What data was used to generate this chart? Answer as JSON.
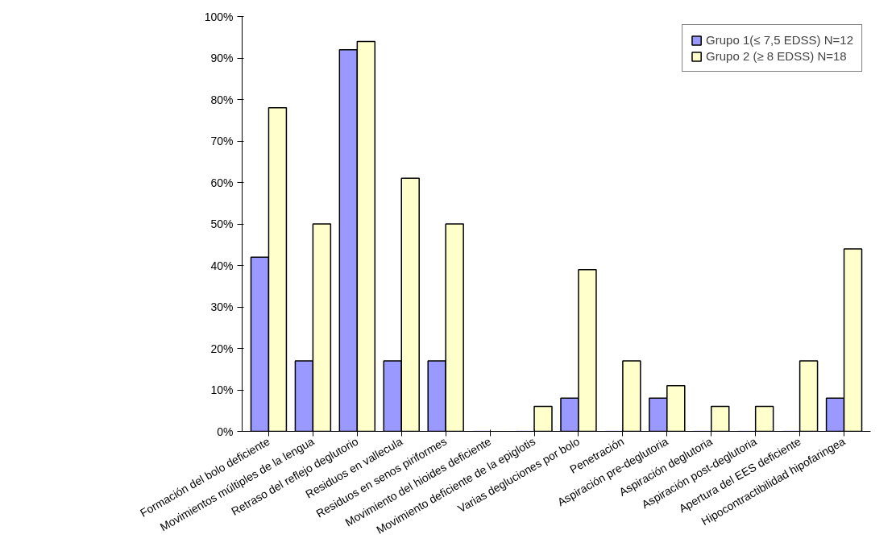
{
  "chart_data": {
    "type": "bar",
    "categories": [
      "Formación del bolo deficiente",
      "Movimientos múltiples de la lengua",
      "Retraso del reflejo deglutorio",
      "Residuos en vallecula",
      "Residuos en senos piriformes",
      "Movimiento del hioides deficiente",
      "Movimiento deficiente de la epiglotis",
      "Varias degluciones por bolo",
      "Penetración",
      "Aspiración pre-deglutoria",
      "Aspiración deglutoria",
      "Aspiración post-deglutoria",
      "Apertura del EES deficiente",
      "Hipocontractibilidad hipofaringea"
    ],
    "series": [
      {
        "name": "Grupo 1(≤ 7,5 EDSS) N=12",
        "color": "#9999ff",
        "values": [
          42,
          17,
          92,
          17,
          17,
          0,
          0,
          8,
          0,
          8,
          0,
          0,
          0,
          8
        ]
      },
      {
        "name": "Grupo 2 (≥ 8 EDSS) N=18",
        "color": "#ffffcc",
        "values": [
          78,
          50,
          94,
          61,
          50,
          0,
          6,
          39,
          17,
          11,
          6,
          6,
          17,
          44
        ]
      }
    ],
    "ylim": [
      0,
      100
    ],
    "yticks": [
      {
        "value": 0,
        "label": "0%"
      },
      {
        "value": 10,
        "label": "10%"
      },
      {
        "value": 20,
        "label": "20%"
      },
      {
        "value": 30,
        "label": "30%"
      },
      {
        "value": 40,
        "label": "40%"
      },
      {
        "value": 50,
        "label": "50%"
      },
      {
        "value": 60,
        "label": "60%"
      },
      {
        "value": 70,
        "label": "70%"
      },
      {
        "value": 80,
        "label": "80%"
      },
      {
        "value": 90,
        "label": "90%"
      },
      {
        "value": 100,
        "label": "100%"
      }
    ],
    "grid": false,
    "legend": "top right"
  }
}
